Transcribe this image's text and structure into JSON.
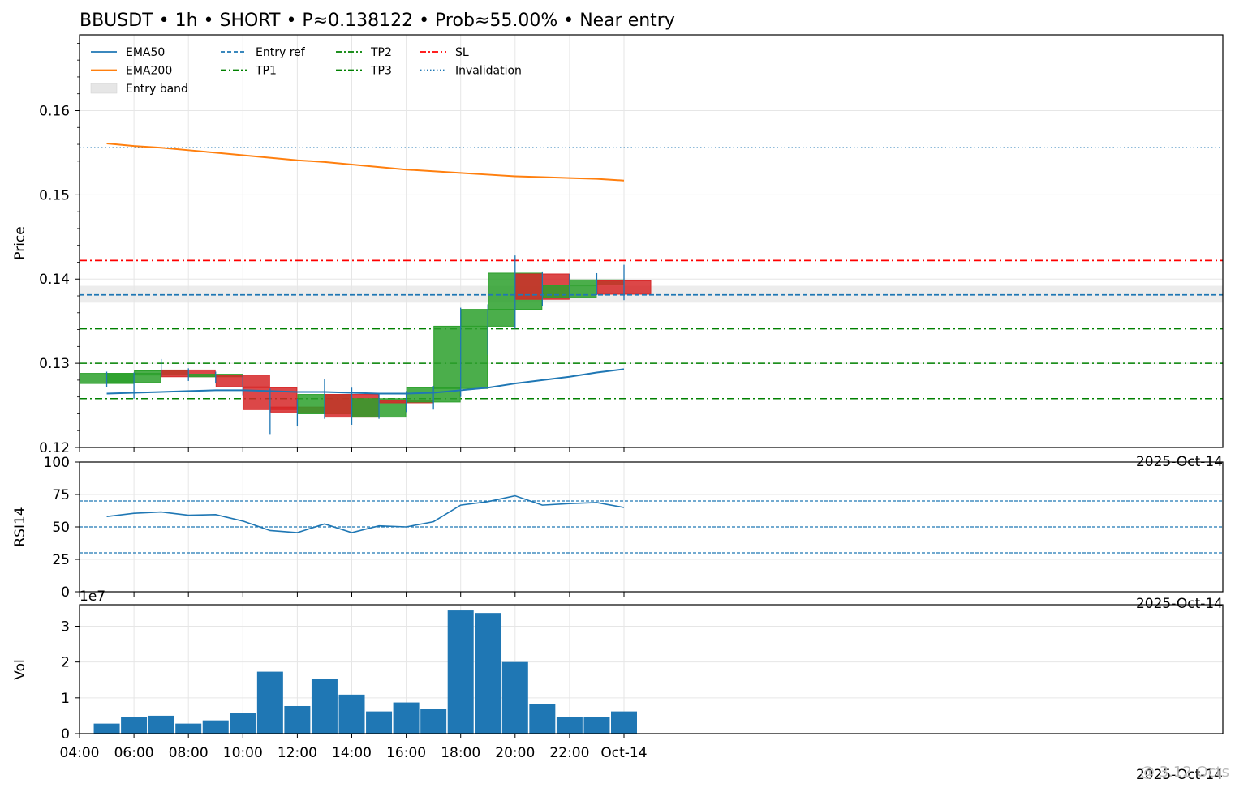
{
  "chart_data": {
    "type": "candlestick",
    "title": "BBUSDT • 1h • SHORT • P≈0.138122 • Prob≈55.00% • Near entry",
    "candles": [
      {
        "t": "05:00",
        "o": 0.1276,
        "h": 0.129,
        "l": 0.1272,
        "c": 0.1288
      },
      {
        "t": "06:00",
        "o": 0.1277,
        "h": 0.1289,
        "l": 0.1258,
        "c": 0.1288
      },
      {
        "t": "07:00",
        "o": 0.1286,
        "h": 0.1305,
        "l": 0.1284,
        "c": 0.1291
      },
      {
        "t": "08:00",
        "o": 0.1292,
        "h": 0.1294,
        "l": 0.1279,
        "c": 0.1284
      },
      {
        "t": "09:00",
        "o": 0.1284,
        "h": 0.129,
        "l": 0.1276,
        "c": 0.1287
      },
      {
        "t": "10:00",
        "o": 0.1286,
        "h": 0.1287,
        "l": 0.1262,
        "c": 0.1272
      },
      {
        "t": "11:00",
        "o": 0.1271,
        "h": 0.127,
        "l": 0.1216,
        "c": 0.1245
      },
      {
        "t": "12:00",
        "o": 0.1248,
        "h": 0.1258,
        "l": 0.1225,
        "c": 0.1242
      },
      {
        "t": "13:00",
        "o": 0.124,
        "h": 0.1281,
        "l": 0.1234,
        "c": 0.1263
      },
      {
        "t": "14:00",
        "o": 0.1263,
        "h": 0.1271,
        "l": 0.1227,
        "c": 0.1236
      },
      {
        "t": "15:00",
        "o": 0.1236,
        "h": 0.1264,
        "l": 0.1234,
        "c": 0.1258
      },
      {
        "t": "16:00",
        "o": 0.1256,
        "h": 0.1267,
        "l": 0.1242,
        "c": 0.1253
      },
      {
        "t": "17:00",
        "o": 0.1254,
        "h": 0.1273,
        "l": 0.1245,
        "c": 0.1271
      },
      {
        "t": "18:00",
        "o": 0.127,
        "h": 0.1366,
        "l": 0.126,
        "c": 0.1344
      },
      {
        "t": "19:00",
        "o": 0.1344,
        "h": 0.137,
        "l": 0.131,
        "c": 0.1364
      },
      {
        "t": "20:00",
        "o": 0.1364,
        "h": 0.1428,
        "l": 0.1341,
        "c": 0.1407
      },
      {
        "t": "21:00",
        "o": 0.1406,
        "h": 0.1409,
        "l": 0.1368,
        "c": 0.1376
      },
      {
        "t": "22:00",
        "o": 0.1378,
        "h": 0.1406,
        "l": 0.1377,
        "c": 0.1392
      },
      {
        "t": "23:00",
        "o": 0.1393,
        "h": 0.1407,
        "l": 0.1381,
        "c": 0.1399
      },
      {
        "t": "Oct-14",
        "o": 0.1398,
        "h": 0.1417,
        "l": 0.1375,
        "c": 0.1382
      }
    ],
    "ema50": [
      0.1264,
      0.1265,
      0.1266,
      0.1267,
      0.1268,
      0.1268,
      0.1267,
      0.1266,
      0.1266,
      0.1265,
      0.1264,
      0.1264,
      0.1265,
      0.1268,
      0.1271,
      0.1276,
      0.128,
      0.1284,
      0.1289,
      0.1293
    ],
    "ema200": [
      0.1561,
      0.1558,
      0.1556,
      0.1553,
      0.155,
      0.1547,
      0.1544,
      0.1541,
      0.1539,
      0.1536,
      0.1533,
      0.153,
      0.1528,
      0.1526,
      0.1524,
      0.1522,
      0.1521,
      0.152,
      0.1519,
      0.1517
    ],
    "levels": {
      "entry_ref": 0.138122,
      "entry_band": [
        0.1372,
        0.1392
      ],
      "sl": 0.1422,
      "tp1": 0.13,
      "tp2": 0.1341,
      "tp3": 0.1258,
      "invalidation": 0.1556
    },
    "rsi14": [
      58,
      60.5,
      61.5,
      59,
      59.5,
      54.5,
      47.2,
      45.6,
      52.3,
      45.6,
      50.8,
      50,
      54,
      66.8,
      69.5,
      74,
      66.8,
      68,
      68.8,
      65
    ],
    "rsi_levels": [
      70,
      50,
      30
    ],
    "volume": [
      0.28,
      0.46,
      0.5,
      0.28,
      0.37,
      0.57,
      1.73,
      0.77,
      1.52,
      1.09,
      0.62,
      0.87,
      0.68,
      3.44,
      3.37,
      2.0,
      0.82,
      0.46,
      0.46,
      0.62
    ],
    "x_tick_labels": [
      "04:00",
      "06:00",
      "08:00",
      "10:00",
      "12:00",
      "14:00",
      "16:00",
      "18:00",
      "20:00",
      "22:00",
      "Oct-14"
    ],
    "price_ylim": [
      0.12,
      0.169
    ],
    "price_ticks": [
      "0.12",
      "0.13",
      "0.14",
      "0.15",
      "0.16"
    ],
    "rsi_ylim": [
      0,
      100
    ],
    "rsi_ticks": [
      "0",
      "25",
      "50",
      "75",
      "100"
    ],
    "vol_ylim": [
      0,
      3.6
    ],
    "vol_ticks": [
      "0",
      "1",
      "2",
      "3"
    ],
    "vol_exponent": "1e7",
    "ylabel_price": "Price",
    "ylabel_rsi": "RSI14",
    "ylabel_vol": "Vol",
    "date_offset_label": "2025-Oct-14",
    "legend": [
      "EMA50",
      "EMA200",
      "Entry band",
      "Entry ref",
      "TP1",
      "TP2",
      "TP3",
      "SL",
      "Invalidation"
    ],
    "grid": true,
    "legend_placement": "top-left",
    "colors": {
      "ema50": "#1f77b4",
      "ema200": "#ff7f0e",
      "up": "#2ca02c",
      "down": "#d62728",
      "entry": "#1f77b4",
      "tp": "#008000",
      "sl": "#ff0000",
      "band": "#e6e6e6",
      "volume": "#1f77b4"
    }
  },
  "watermark": "@ 3.12 Octs"
}
